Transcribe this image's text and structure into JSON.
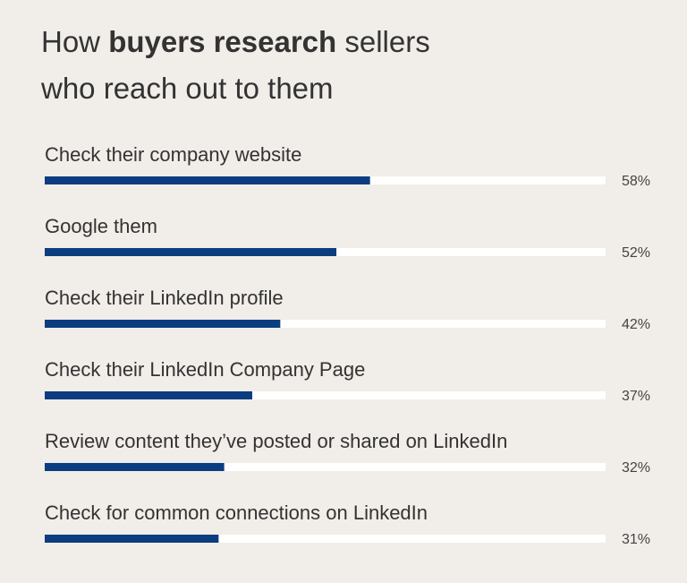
{
  "chart_data": {
    "type": "progress-bar",
    "title_lines": [
      [
        "How",
        "buyers research",
        "sellers"
      ],
      [
        "who reach out to them"
      ]
    ],
    "title_bold": [
      [
        false,
        true,
        false
      ],
      [
        false
      ]
    ],
    "categories": [
      "Check their company website",
      "Google them",
      "Check their LinkedIn profile",
      "Check their LinkedIn Company Page",
      "Review content they’ve posted or shared on LinkedIn",
      "Check for common connections on LinkedIn"
    ],
    "values": [
      58,
      52,
      42,
      37,
      32,
      31
    ],
    "value_labels": [
      "58%",
      "52%",
      "42%",
      "37%",
      "32%",
      "31%"
    ],
    "xlim": [
      0,
      100
    ],
    "color": "#0b3d80",
    "track_color": "#ffffff"
  }
}
